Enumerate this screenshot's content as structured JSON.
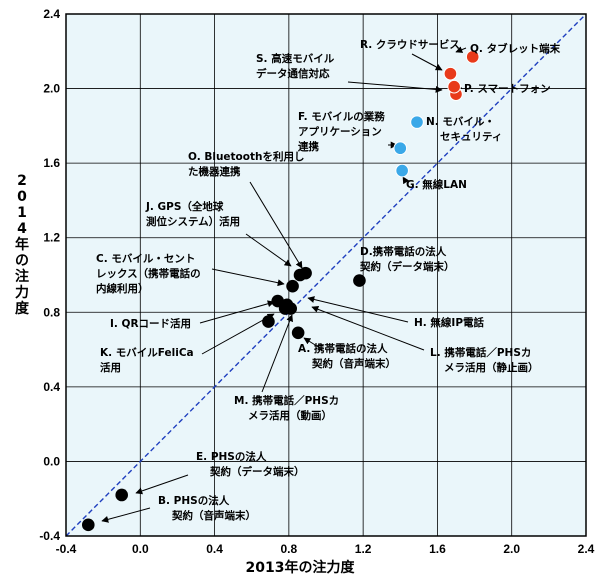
{
  "chart_data": {
    "type": "scatter",
    "xlabel": "2013年の注力度",
    "ylabel": "2014年の注力度",
    "xlim": [
      -0.4,
      2.4
    ],
    "ylim": [
      -0.4,
      2.4
    ],
    "x_ticks": [
      "-0.4",
      "0.0",
      "0.4",
      "0.8",
      "1.2",
      "1.6",
      "2.0",
      "2.4"
    ],
    "y_ticks": [
      "-0.4",
      "0.0",
      "0.4",
      "0.8",
      "1.2",
      "1.6",
      "2.0",
      "2.4"
    ],
    "grid": true,
    "reference_line": "y = x",
    "colors": {
      "default": "#000000",
      "cyan": "#3aa8e8",
      "red": "#e83a1a",
      "diagonal": "#1f3fbf",
      "background": "#eaf6fa"
    },
    "points": [
      {
        "id": "A",
        "x": 0.85,
        "y": 0.69,
        "color": "black",
        "label": [
          "A. 携帯電話の法人",
          "契約（音声端末）"
        ]
      },
      {
        "id": "B",
        "x": -0.28,
        "y": -0.34,
        "color": "black",
        "label": [
          "B. PHSの法人",
          "契約（音声端末）"
        ]
      },
      {
        "id": "C",
        "x": 0.82,
        "y": 0.94,
        "color": "black",
        "label": [
          "C. モバイル・セント",
          "レックス（携帯電話の",
          "内線利用）"
        ]
      },
      {
        "id": "D",
        "x": 1.18,
        "y": 0.97,
        "color": "black",
        "label": [
          "D.携帯電話の法人",
          "契約（データ端末）"
        ]
      },
      {
        "id": "E",
        "x": -0.1,
        "y": -0.18,
        "color": "black",
        "label": [
          "E. PHSの法人",
          "契約（データ端末）"
        ]
      },
      {
        "id": "F",
        "x": 1.4,
        "y": 1.68,
        "color": "cyan",
        "label": [
          "F. モバイルの業務",
          "アプリケーション",
          "連携"
        ]
      },
      {
        "id": "G",
        "x": 1.41,
        "y": 1.56,
        "color": "cyan",
        "label": [
          "G. 無線LAN"
        ]
      },
      {
        "id": "H",
        "x": 0.78,
        "y": 0.82,
        "color": "black",
        "label": [
          "H. 無線IP電話"
        ]
      },
      {
        "id": "I",
        "x": 0.74,
        "y": 0.86,
        "color": "black",
        "label": [
          "I. QRコード活用"
        ]
      },
      {
        "id": "J",
        "x": 0.86,
        "y": 1.0,
        "color": "black",
        "label": [
          "J. GPS（全地球",
          "測位システム）活用"
        ]
      },
      {
        "id": "K",
        "x": 0.69,
        "y": 0.75,
        "color": "black",
        "label": [
          "K. モバイルFeliCa",
          "活用"
        ]
      },
      {
        "id": "L",
        "x": 0.81,
        "y": 0.82,
        "color": "black",
        "label": [
          "L. 携帯電話／PHSカ",
          "メラ活用（静止画）"
        ]
      },
      {
        "id": "M",
        "x": 0.79,
        "y": 0.84,
        "color": "black",
        "label": [
          "M. 携帯電話／PHSカ",
          "メラ活用（動画）"
        ]
      },
      {
        "id": "N",
        "x": 1.49,
        "y": 1.82,
        "color": "cyan",
        "label": [
          "N. モバイル・",
          "セキュリティ"
        ]
      },
      {
        "id": "O",
        "x": 0.89,
        "y": 1.01,
        "color": "black",
        "label": [
          "O. Bluetoothを利用し",
          "た機器連携"
        ]
      },
      {
        "id": "P",
        "x": 1.7,
        "y": 1.97,
        "color": "red",
        "label": [
          "P. スマートフォン"
        ]
      },
      {
        "id": "Q",
        "x": 1.79,
        "y": 2.17,
        "color": "red",
        "label": [
          "Q. タブレット端末"
        ]
      },
      {
        "id": "R",
        "x": 1.67,
        "y": 2.08,
        "color": "red",
        "label": [
          "R. クラウドサービス"
        ]
      },
      {
        "id": "S",
        "x": 1.69,
        "y": 2.01,
        "color": "red",
        "label": [
          "S. 高速モバイル",
          "データ通信対応"
        ]
      }
    ]
  }
}
